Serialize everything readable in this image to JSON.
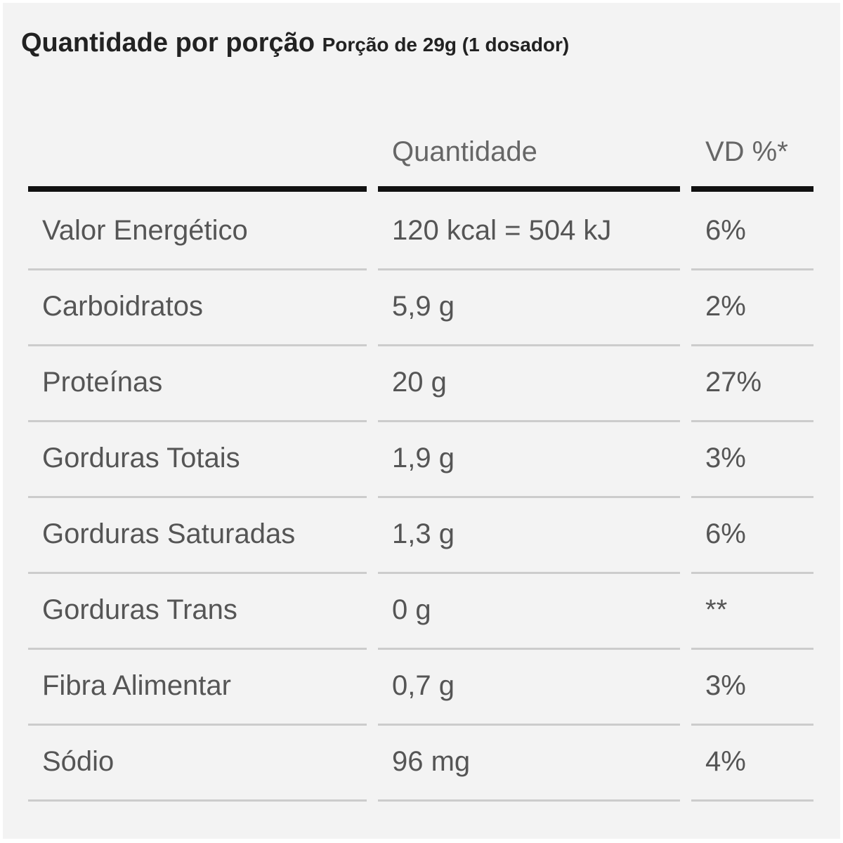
{
  "header": {
    "title": "Quantidade por porção",
    "subtitle": "Porção de 29g (1 dosador)"
  },
  "table": {
    "columns": [
      "",
      "Quantidade",
      "VD %*"
    ],
    "rows": [
      [
        "Valor Energético",
        "120 kcal = 504 kJ",
        "6%"
      ],
      [
        "Carboidratos",
        "5,9 g",
        "2%"
      ],
      [
        "Proteínas",
        "20 g",
        "27%"
      ],
      [
        "Gorduras Totais",
        "1,9 g",
        "3%"
      ],
      [
        "Gorduras Saturadas",
        "1,3 g",
        "6%"
      ],
      [
        "Gorduras Trans",
        "0 g",
        "**"
      ],
      [
        "Fibra Alimentar",
        "0,7 g",
        "3%"
      ],
      [
        "Sódio",
        "96 mg",
        "4%"
      ]
    ]
  }
}
